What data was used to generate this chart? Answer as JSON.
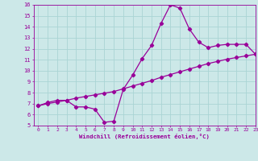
{
  "xlabel": "Windchill (Refroidissement éolien,°C)",
  "line1_x": [
    0,
    1,
    2,
    3,
    4,
    5,
    6,
    7,
    8,
    9,
    10,
    11,
    12,
    13,
    14,
    15,
    16,
    17,
    18,
    19,
    20,
    21,
    22,
    23
  ],
  "line1_y": [
    6.8,
    7.1,
    7.3,
    7.3,
    6.7,
    6.7,
    6.5,
    5.3,
    5.4,
    8.3,
    9.6,
    11.1,
    12.3,
    14.3,
    16.0,
    15.7,
    13.8,
    12.6,
    12.1,
    12.3,
    12.4,
    12.4,
    12.4,
    11.5
  ],
  "line2_x": [
    0,
    1,
    2,
    3,
    4,
    5,
    6,
    7,
    8,
    9,
    10,
    11,
    12,
    13,
    14,
    15,
    16,
    17,
    18,
    19,
    20,
    21,
    22,
    23
  ],
  "line2_y": [
    6.8,
    7.0,
    7.15,
    7.3,
    7.5,
    7.65,
    7.8,
    7.95,
    8.1,
    8.35,
    8.6,
    8.85,
    9.1,
    9.4,
    9.65,
    9.9,
    10.15,
    10.4,
    10.65,
    10.85,
    11.05,
    11.2,
    11.35,
    11.5
  ],
  "line_color": "#990099",
  "bg_color": "#cce8e8",
  "grid_color": "#aad4d4",
  "text_color": "#990099",
  "ylim": [
    5,
    16
  ],
  "xlim": [
    -0.5,
    23
  ],
  "yticks": [
    5,
    6,
    7,
    8,
    9,
    10,
    11,
    12,
    13,
    14,
    15,
    16
  ],
  "xticks": [
    0,
    1,
    2,
    3,
    4,
    5,
    6,
    7,
    8,
    9,
    10,
    11,
    12,
    13,
    14,
    15,
    16,
    17,
    18,
    19,
    20,
    21,
    22,
    23
  ],
  "marker": "D",
  "marker_size": 2.2,
  "linewidth": 0.9
}
